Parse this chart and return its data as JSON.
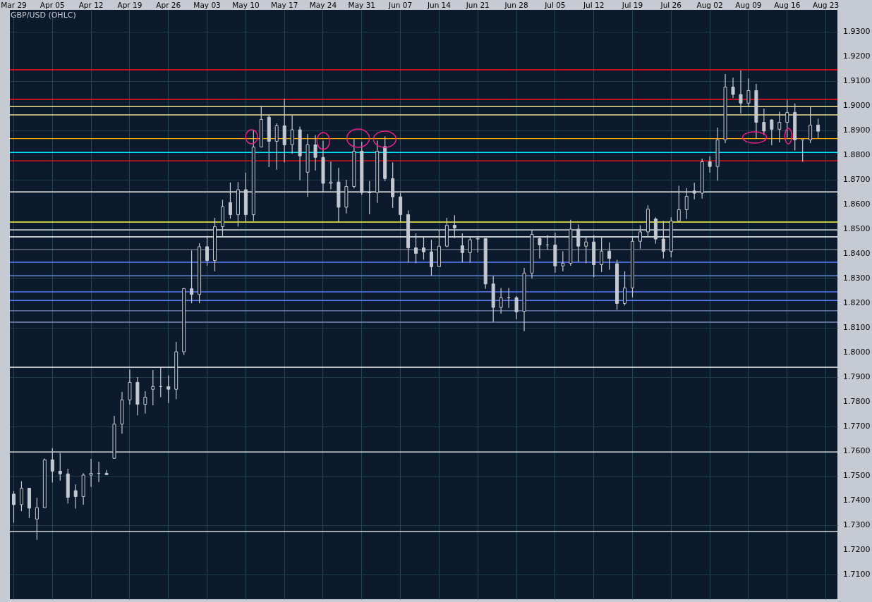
{
  "chart_data": {
    "type": "candlestick",
    "title": "GBP/USD (OHLC)",
    "color": "#c4c8d0",
    "categories": [
      "Mar 29",
      null,
      null,
      null,
      null,
      "Apr 05",
      null,
      null,
      null,
      null,
      "Apr 12",
      null,
      null,
      null,
      null,
      "Apr 19",
      null,
      null,
      null,
      null,
      "Apr 26",
      null,
      null,
      null,
      null,
      "May 03",
      null,
      null,
      null,
      null,
      "May 10",
      null,
      null,
      null,
      null,
      "May 17",
      null,
      null,
      null,
      null,
      "May 24",
      null,
      null,
      null,
      null,
      "May 31",
      null,
      null,
      null,
      null,
      "Jun 07",
      null,
      null,
      null,
      null,
      "Jun 14",
      null,
      null,
      null,
      null,
      "Jun 21",
      null,
      null,
      null,
      null,
      "Jun 28",
      null,
      null,
      null,
      null,
      "Jul 05",
      null,
      null,
      null,
      null,
      "Jul 12",
      null,
      null,
      null,
      null,
      "Jul 19",
      null,
      null,
      null,
      null,
      "Jul 26",
      null,
      null,
      null,
      null,
      "Aug 02",
      null,
      null,
      null,
      null,
      "Aug 09",
      null,
      null,
      null,
      null,
      "Aug 16",
      null,
      null,
      null,
      null,
      "Aug 23",
      null
    ],
    "ohlc": [
      [
        1.7426,
        1.7438,
        1.731,
        1.7383
      ],
      [
        1.7383,
        1.7478,
        1.7357,
        1.745
      ],
      [
        1.745,
        1.745,
        1.7329,
        1.7369
      ],
      [
        1.7325,
        1.7411,
        1.7241,
        1.7371
      ],
      [
        1.7371,
        1.757,
        1.7369,
        1.7565
      ],
      [
        1.7565,
        1.7612,
        1.7473,
        1.7519
      ],
      [
        1.7519,
        1.7592,
        1.7481,
        1.7508
      ],
      [
        1.7508,
        1.7529,
        1.7388,
        1.7413
      ],
      [
        1.744,
        1.7465,
        1.7367,
        1.7416
      ],
      [
        1.7416,
        1.7511,
        1.7383,
        1.7503
      ],
      [
        1.7503,
        1.7569,
        1.7455,
        1.751
      ],
      [
        1.751,
        1.7557,
        1.7475,
        1.751
      ],
      [
        1.751,
        1.7524,
        1.7503,
        1.7505
      ],
      [
        1.7571,
        1.7743,
        1.7571,
        1.771
      ],
      [
        1.771,
        1.784,
        1.7671,
        1.7808
      ],
      [
        1.7808,
        1.7931,
        1.7789,
        1.7879
      ],
      [
        1.7879,
        1.79,
        1.7745,
        1.779
      ],
      [
        1.779,
        1.7843,
        1.7752,
        1.7819
      ],
      [
        1.7851,
        1.7929,
        1.7786,
        1.7862
      ],
      [
        1.7862,
        1.7941,
        1.7819,
        1.7862
      ],
      [
        1.7862,
        1.7907,
        1.7795,
        1.7851
      ],
      [
        1.7851,
        1.8043,
        1.7811,
        1.8003
      ],
      [
        1.8003,
        1.8262,
        1.799,
        1.8259
      ],
      [
        1.8259,
        1.8414,
        1.82,
        1.8235
      ],
      [
        1.8235,
        1.8443,
        1.82,
        1.8429
      ],
      [
        1.8429,
        1.8473,
        1.8352,
        1.8373
      ],
      [
        1.8373,
        1.8546,
        1.8329,
        1.851
      ],
      [
        1.851,
        1.8619,
        1.8469,
        1.8591
      ],
      [
        1.8608,
        1.8689,
        1.8543,
        1.8559
      ],
      [
        1.8559,
        1.8691,
        1.851,
        1.866
      ],
      [
        1.866,
        1.8729,
        1.8529,
        1.8559
      ],
      [
        1.8559,
        1.8902,
        1.8533,
        1.8833
      ],
      [
        1.8833,
        1.9,
        1.8833,
        1.8945
      ],
      [
        1.8954,
        1.8964,
        1.8752,
        1.8856
      ],
      [
        1.8856,
        1.8929,
        1.8741,
        1.8919
      ],
      [
        1.8919,
        1.9029,
        1.8771,
        1.8842
      ],
      [
        1.8842,
        1.8962,
        1.8805,
        1.8903
      ],
      [
        1.8903,
        1.8916,
        1.8698,
        1.8797
      ],
      [
        1.8731,
        1.8886,
        1.8631,
        1.8842
      ],
      [
        1.8842,
        1.8881,
        1.8738,
        1.8791
      ],
      [
        1.8791,
        1.8859,
        1.8651,
        1.8686
      ],
      [
        1.8686,
        1.8774,
        1.8662,
        1.8691
      ],
      [
        1.8691,
        1.8748,
        1.8529,
        1.8589
      ],
      [
        1.8589,
        1.87,
        1.8564,
        1.8673
      ],
      [
        1.8673,
        1.8867,
        1.8665,
        1.8816
      ],
      [
        1.8816,
        1.8854,
        1.8638,
        1.8648
      ],
      [
        1.8648,
        1.8695,
        1.856,
        1.8648
      ],
      [
        1.8648,
        1.8859,
        1.8607,
        1.8816
      ],
      [
        1.8835,
        1.8876,
        1.8695,
        1.8705
      ],
      [
        1.8705,
        1.8771,
        1.8586,
        1.8631
      ],
      [
        1.8631,
        1.8646,
        1.8529,
        1.8559
      ],
      [
        1.8559,
        1.8576,
        1.8365,
        1.8424
      ],
      [
        1.8424,
        1.8483,
        1.8362,
        1.8402
      ],
      [
        1.8424,
        1.8467,
        1.8376,
        1.8408
      ],
      [
        1.8408,
        1.8457,
        1.8312,
        1.8348
      ],
      [
        1.8348,
        1.8495,
        1.8348,
        1.8431
      ],
      [
        1.8431,
        1.8546,
        1.8427,
        1.8516
      ],
      [
        1.8516,
        1.8557,
        1.8464,
        1.8505
      ],
      [
        1.8433,
        1.8483,
        1.8365,
        1.8405
      ],
      [
        1.8405,
        1.8471,
        1.8365,
        1.8457
      ],
      [
        1.846,
        1.8467,
        1.8405,
        1.8462
      ],
      [
        1.8462,
        1.8462,
        1.8259,
        1.8278
      ],
      [
        1.8278,
        1.831,
        1.8124,
        1.8183
      ],
      [
        1.8183,
        1.8262,
        1.8157,
        1.8222
      ],
      [
        1.8222,
        1.8262,
        1.8181,
        1.8222
      ],
      [
        1.8222,
        1.8229,
        1.8135,
        1.8165
      ],
      [
        1.8167,
        1.8343,
        1.8086,
        1.8322
      ],
      [
        1.8322,
        1.8495,
        1.83,
        1.8479
      ],
      [
        1.8462,
        1.8471,
        1.8381,
        1.8436
      ],
      [
        1.8436,
        1.8476,
        1.8417,
        1.8436
      ],
      [
        1.8436,
        1.8486,
        1.8324,
        1.8351
      ],
      [
        1.8351,
        1.841,
        1.8329,
        1.8362
      ],
      [
        1.8362,
        1.8538,
        1.8352,
        1.85
      ],
      [
        1.85,
        1.8519,
        1.8367,
        1.8431
      ],
      [
        1.8431,
        1.8471,
        1.8362,
        1.8448
      ],
      [
        1.8448,
        1.8476,
        1.8305,
        1.8356
      ],
      [
        1.8356,
        1.8467,
        1.8326,
        1.8411
      ],
      [
        1.8411,
        1.8446,
        1.8335,
        1.8381
      ],
      [
        1.836,
        1.8376,
        1.8173,
        1.8199
      ],
      [
        1.8199,
        1.8329,
        1.8191,
        1.8262
      ],
      [
        1.8262,
        1.8467,
        1.8224,
        1.8451
      ],
      [
        1.8451,
        1.8516,
        1.8421,
        1.8489
      ],
      [
        1.8489,
        1.8597,
        1.8467,
        1.8581
      ],
      [
        1.8541,
        1.8548,
        1.8441,
        1.846
      ],
      [
        1.846,
        1.8533,
        1.8381,
        1.841
      ],
      [
        1.841,
        1.8548,
        1.8386,
        1.8533
      ],
      [
        1.8533,
        1.8676,
        1.8533,
        1.8579
      ],
      [
        1.8579,
        1.8667,
        1.8541,
        1.8633
      ],
      [
        1.8655,
        1.8688,
        1.8621,
        1.8646
      ],
      [
        1.8646,
        1.8786,
        1.8624,
        1.8773
      ],
      [
        1.8773,
        1.8795,
        1.8729,
        1.8754
      ],
      [
        1.8754,
        1.8912,
        1.8697,
        1.8862
      ],
      [
        1.8862,
        1.9129,
        1.8849,
        1.9076
      ],
      [
        1.9076,
        1.9114,
        1.9031,
        1.9046
      ],
      [
        1.9046,
        1.9143,
        1.8969,
        1.9011
      ],
      [
        1.9011,
        1.9111,
        1.8998,
        1.9062
      ],
      [
        1.9062,
        1.9089,
        1.8867,
        1.8933
      ],
      [
        1.8933,
        1.8989,
        1.8881,
        1.8898
      ],
      [
        1.8943,
        1.8945,
        1.884,
        1.8905
      ],
      [
        1.8905,
        1.8976,
        1.8852,
        1.8933
      ],
      [
        1.8933,
        1.9024,
        1.8871,
        1.8973
      ],
      [
        1.8973,
        1.901,
        1.8819,
        1.8862
      ],
      [
        1.8862,
        1.8862,
        1.8773,
        1.8862
      ],
      [
        1.8862,
        1.8995,
        1.8849,
        1.8922
      ],
      [
        1.8922,
        1.8948,
        1.8869,
        1.8897
      ],
      null,
      null
    ],
    "ylim": [
      1.7,
      1.9389
    ],
    "yticks": [
      {
        "value": 1.71,
        "label": "1.7100"
      },
      {
        "value": 1.72,
        "label": "1.7200"
      },
      {
        "value": 1.73,
        "label": "1.7300"
      },
      {
        "value": 1.74,
        "label": "1.7400"
      },
      {
        "value": 1.75,
        "label": "1.7500"
      },
      {
        "value": 1.76,
        "label": "1.7600"
      },
      {
        "value": 1.77,
        "label": "1.7700"
      },
      {
        "value": 1.78,
        "label": "1.7800"
      },
      {
        "value": 1.79,
        "label": "1.7900"
      },
      {
        "value": 1.8,
        "label": "1.8000"
      },
      {
        "value": 1.81,
        "label": "1.8100"
      },
      {
        "value": 1.82,
        "label": "1.8200"
      },
      {
        "value": 1.83,
        "label": "1.8300"
      },
      {
        "value": 1.84,
        "label": "1.8400"
      },
      {
        "value": 1.85,
        "label": "1.8500"
      },
      {
        "value": 1.86,
        "label": "1.8600"
      },
      {
        "value": 1.87,
        "label": "1.8700"
      },
      {
        "value": 1.88,
        "label": "1.8800"
      },
      {
        "value": 1.89,
        "label": "1.8900"
      },
      {
        "value": 1.9,
        "label": "1.9000"
      },
      {
        "value": 1.91,
        "label": "1.9100"
      },
      {
        "value": 1.92,
        "label": "1.9200"
      },
      {
        "value": 1.93,
        "label": "1.9300"
      }
    ],
    "grid": true,
    "ref_lines": [
      {
        "axis": "y",
        "value": 1.9146,
        "color": "#ff1010"
      },
      {
        "axis": "y",
        "value": 1.9026,
        "color": "#ff1010"
      },
      {
        "axis": "y",
        "value": 1.8997,
        "color": "#eedd88"
      },
      {
        "axis": "y",
        "value": 1.8963,
        "color": "#eedd88"
      },
      {
        "axis": "y",
        "value": 1.8867,
        "color": "#ffaa00"
      },
      {
        "axis": "y",
        "value": 1.8811,
        "color": "#00e8ff"
      },
      {
        "axis": "y",
        "value": 1.8777,
        "color": "#ff1010"
      },
      {
        "axis": "y",
        "value": 1.8651,
        "color": "#ffffff"
      },
      {
        "axis": "y",
        "value": 1.8529,
        "color": "#ffff40"
      },
      {
        "axis": "y",
        "value": 1.8497,
        "color": "#ffffff"
      },
      {
        "axis": "y",
        "value": 1.8469,
        "color": "#ffffff"
      },
      {
        "axis": "y",
        "value": 1.8417,
        "color": "#7a8290"
      },
      {
        "axis": "y",
        "value": 1.8366,
        "color": "#5a7cff"
      },
      {
        "axis": "y",
        "value": 1.8311,
        "color": "#6a88d8"
      },
      {
        "axis": "y",
        "value": 1.8246,
        "color": "#5a7cff"
      },
      {
        "axis": "y",
        "value": 1.8211,
        "color": "#5a7cff"
      },
      {
        "axis": "y",
        "value": 1.8169,
        "color": "#7888b8"
      },
      {
        "axis": "y",
        "value": 1.8123,
        "color": "#7888b8"
      },
      {
        "axis": "y",
        "value": 1.794,
        "color": "#ffffff"
      },
      {
        "axis": "y",
        "value": 1.7597,
        "color": "#ffffff"
      },
      {
        "axis": "y",
        "value": 1.7274,
        "color": "#ffffff"
      }
    ]
  }
}
